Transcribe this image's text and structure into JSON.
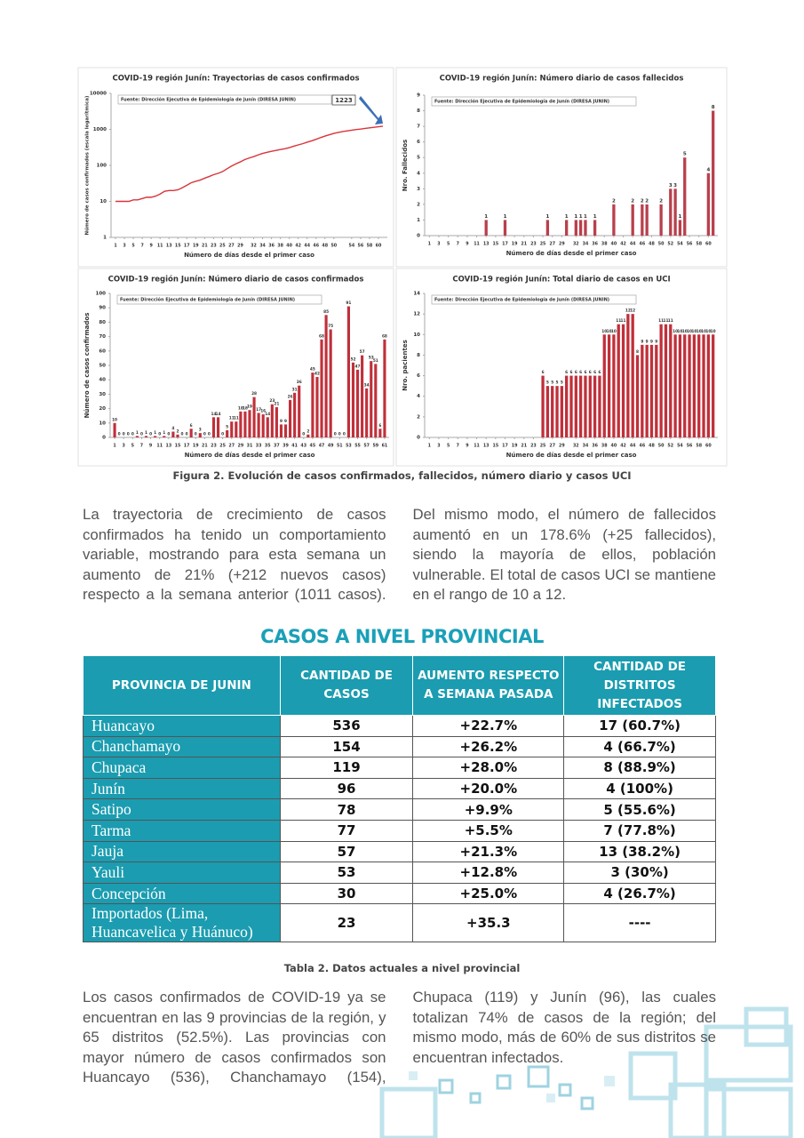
{
  "chart_data": [
    {
      "type": "line",
      "title": "COVID-19 región Junín: Trayectorias de casos confirmados",
      "source": "Fuente: Dirección Ejecutiva de Epidemiología de Junín (DIRESA JUNIN)",
      "annotation": "1223",
      "y_label": "Número de casos confirmados (escala logarítmica)",
      "x_label": "Número de días desde el primer caso",
      "color": "#d8343a",
      "log_scale": true,
      "x": [
        1,
        2,
        3,
        4,
        5,
        6,
        7,
        8,
        9,
        10,
        11,
        12,
        13,
        14,
        15,
        16,
        17,
        18,
        19,
        20,
        21,
        22,
        23,
        24,
        25,
        26,
        27,
        28,
        29,
        30,
        31,
        32,
        33,
        34,
        35,
        36,
        37,
        38,
        39,
        40,
        41,
        42,
        43,
        44,
        45,
        46,
        47,
        48,
        49,
        50,
        51,
        52,
        53,
        54,
        55,
        56,
        57,
        58,
        59,
        60,
        61
      ],
      "values": [
        10,
        10,
        10,
        10,
        11,
        11,
        12,
        13,
        13,
        14,
        16,
        19,
        20,
        20,
        21,
        24,
        28,
        33,
        36,
        39,
        44,
        49,
        55,
        60,
        67,
        80,
        95,
        110,
        125,
        145,
        160,
        175,
        195,
        215,
        230,
        245,
        260,
        275,
        290,
        310,
        340,
        370,
        400,
        440,
        480,
        530,
        590,
        650,
        710,
        770,
        820,
        870,
        910,
        950,
        990,
        1020,
        1060,
        1100,
        1140,
        1180,
        1223
      ],
      "xlim": [
        0,
        62
      ],
      "xticks": [
        1,
        3,
        5,
        7,
        9,
        11,
        13,
        15,
        17,
        19,
        21,
        23,
        25,
        27,
        29,
        32,
        34,
        36,
        38,
        40,
        42,
        44,
        46,
        48,
        50,
        54,
        56,
        58,
        60
      ],
      "ylim": [
        1,
        10000
      ],
      "yticks": [
        1,
        10,
        100,
        1000,
        10000
      ]
    },
    {
      "type": "bar",
      "title": "COVID-19 región Junín: Número diario de casos fallecidos",
      "source": "Fuente: Dirección Ejecutiva de Epidemiología de Junín (DIRESA JUNIN)",
      "y_label": "Nro. Fallecidos",
      "x_label": "Número de días desde el primer caso",
      "color": "#b8404c",
      "x": [
        13,
        17,
        26,
        30,
        32,
        33,
        34,
        36,
        40,
        44,
        46,
        47,
        50,
        52,
        53,
        54,
        55,
        60,
        61
      ],
      "values": [
        1,
        1,
        1,
        1,
        1,
        1,
        1,
        1,
        2,
        2,
        2,
        2,
        2,
        3,
        3,
        1,
        5,
        4,
        8
      ],
      "xlim": [
        0,
        62
      ],
      "xticks": [
        1,
        3,
        5,
        7,
        9,
        11,
        13,
        15,
        17,
        19,
        21,
        23,
        25,
        27,
        29,
        32,
        34,
        36,
        38,
        40,
        42,
        44,
        46,
        48,
        50,
        52,
        54,
        56,
        58,
        60
      ],
      "ylim": [
        0,
        9
      ],
      "yticks": [
        0,
        1,
        2,
        3,
        4,
        5,
        6,
        7,
        8,
        9
      ]
    },
    {
      "type": "bar",
      "title": "COVID-19 región Junín: Número diario de casos confirmados",
      "source": "Fuente: Dirección Ejecutiva de Epidemiología de Junín (DIRESA JUNIN)",
      "y_label": "Número de casos confirmados",
      "x_label": "Número de días desde el primer caso",
      "color": "#c0303a",
      "x": [
        1,
        2,
        3,
        4,
        5,
        6,
        7,
        8,
        9,
        10,
        11,
        12,
        13,
        14,
        15,
        16,
        17,
        18,
        19,
        20,
        21,
        22,
        23,
        24,
        25,
        26,
        27,
        28,
        29,
        30,
        31,
        32,
        33,
        34,
        35,
        36,
        37,
        38,
        39,
        40,
        41,
        42,
        43,
        44,
        45,
        46,
        47,
        48,
        49,
        50,
        51,
        52,
        53,
        54,
        55,
        56,
        57,
        58,
        59,
        60,
        61
      ],
      "values": [
        10,
        0,
        0,
        0,
        0,
        1,
        0,
        1,
        0,
        1,
        0,
        1,
        0,
        4,
        2,
        0,
        0,
        6,
        0,
        3,
        0,
        0,
        14,
        14,
        0,
        5,
        11,
        11,
        18,
        18,
        19,
        28,
        17,
        16,
        14,
        23,
        21,
        9,
        9,
        26,
        31,
        36,
        0,
        2,
        45,
        42,
        68,
        85,
        75,
        0,
        0,
        0,
        91,
        52,
        47,
        57,
        34,
        53,
        51,
        6,
        68
      ],
      "xlim": [
        0,
        62
      ],
      "xticks": [
        1,
        3,
        5,
        7,
        9,
        11,
        13,
        15,
        17,
        19,
        21,
        23,
        25,
        27,
        29,
        31,
        33,
        35,
        37,
        39,
        41,
        43,
        45,
        47,
        49,
        51,
        53,
        55,
        57,
        59,
        61
      ],
      "ylim": [
        0,
        100
      ],
      "yticks": [
        0,
        10,
        20,
        30,
        40,
        50,
        60,
        70,
        80,
        90,
        100
      ]
    },
    {
      "type": "bar",
      "title": "COVID-19 región Junín: Total diario de casos en UCI",
      "source": "Fuente: Dirección Ejecutiva de Epidemiología de Junín (DIRESA JUNIN)",
      "y_label": "Nro. pacientes",
      "x_label": "Número de días desde el primer caso",
      "color": "#c0303a",
      "x": [
        25,
        26,
        27,
        28,
        29,
        30,
        31,
        32,
        33,
        34,
        35,
        36,
        37,
        38,
        39,
        40,
        41,
        42,
        43,
        44,
        45,
        46,
        47,
        48,
        49,
        50,
        51,
        52,
        53,
        54,
        55,
        56,
        57,
        58,
        59,
        60,
        61
      ],
      "values": [
        6,
        5,
        5,
        5,
        5,
        6,
        6,
        6,
        6,
        6,
        6,
        6,
        6,
        10,
        10,
        10,
        11,
        11,
        12,
        12,
        8,
        9,
        9,
        9,
        9,
        11,
        11,
        11,
        10,
        10,
        10,
        10,
        10,
        10,
        10,
        10,
        10
      ],
      "xlim": [
        0,
        62
      ],
      "xticks": [
        1,
        3,
        5,
        7,
        9,
        11,
        13,
        15,
        17,
        19,
        21,
        23,
        25,
        27,
        29,
        32,
        34,
        36,
        38,
        40,
        42,
        44,
        46,
        48,
        50,
        52,
        54,
        56,
        58,
        60
      ],
      "ylim": [
        0,
        14
      ],
      "yticks": [
        0,
        2,
        4,
        6,
        8,
        10,
        12,
        14
      ]
    }
  ],
  "figure_caption": "Figura 2. Evolución de casos confirmados, fallecidos, número diario y casos UCI",
  "paragraph_1": "La trayectoria de crecimiento de casos confirmados ha tenido un comportamiento variable, mostrando para esta semana un aumento de 21% (+212 nuevos casos) respecto a la semana anterior (1011 casos). Del mismo modo, el número de fallecidos aumentó en un 178.6% (+25 fallecidos), siendo la mayoría de ellos, población vulnerable. El total de casos UCI se mantiene en el rango de 10 a 12.",
  "section_title": "CASOS A NIVEL PROVINCIAL",
  "table": {
    "header": [
      "PROVINCIA DE JUNIN",
      "CANTIDAD DE CASOS",
      "AUMENTO RESPECTO A SEMANA PASADA",
      "CANTIDAD DE DISTRITOS INFECTADOS"
    ],
    "rows": [
      [
        "Huancayo",
        "536",
        "+22.7%",
        "17 (60.7%)"
      ],
      [
        "Chanchamayo",
        "154",
        "+26.2%",
        "4 (66.7%)"
      ],
      [
        "Chupaca",
        "119",
        "+28.0%",
        "8 (88.9%)"
      ],
      [
        "Junín",
        "96",
        "+20.0%",
        "4 (100%)"
      ],
      [
        "Satipo",
        "78",
        "+9.9%",
        "5 (55.6%)"
      ],
      [
        "Tarma",
        "77",
        "+5.5%",
        "7 (77.8%)"
      ],
      [
        "Jauja",
        "57",
        "+21.3%",
        "13 (38.2%)"
      ],
      [
        "Yauli",
        "53",
        "+12.8%",
        "3 (30%)"
      ],
      [
        "Concepción",
        "30",
        "+25.0%",
        "4 (26.7%)"
      ],
      [
        "Importados (Lima, Huancavelica y Huánuco)",
        "23",
        "+35.3",
        "----"
      ]
    ]
  },
  "table_caption": "Tabla 2. Datos actuales a nivel provincial",
  "paragraph_2": "Los casos confirmados de COVID-19 ya se encuentran en las 9 provincias de la región, y 65 distritos (52.5%). Las provincias con mayor número de casos confirmados son Huancayo (536), Chanchamayo (154), Chupaca (119) y Junín (96), las cuales totalizan 74% de casos de la región; del mismo modo, más de 60% de sus distritos se encuentran infectados."
}
